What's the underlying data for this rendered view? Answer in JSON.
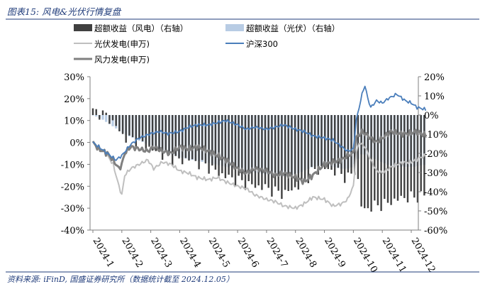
{
  "header": {
    "title": "图表15:  风电&光伏行情复盘"
  },
  "footer": {
    "source": "资料来源:  iFinD,  国盛证券研究所（数据统计截至 2024.12.05）"
  },
  "colors": {
    "title": "#1f3b7a",
    "excess_wind": "#404040",
    "excess_pv": "#b8cce4",
    "pv_index": "#bfbfbf",
    "csi300": "#4a7ebb",
    "wind_index": "#808080"
  },
  "chart_data": {
    "type": "combo",
    "x_ticks": [
      "2024-1",
      "2024-2",
      "2024-3",
      "2024-4",
      "2024-5",
      "2024-6",
      "2024-7",
      "2024-8",
      "2024-9",
      "2024-10",
      "2024-11",
      "2024-12"
    ],
    "left_axis": {
      "ticks": [
        "30%",
        "20%",
        "10%",
        "0%",
        "-10%",
        "-20%",
        "-30%",
        "-40%"
      ],
      "range": [
        -40,
        30
      ]
    },
    "right_axis": {
      "ticks": [
        "20%",
        "10%",
        "0%",
        "-10%",
        "-20%",
        "-30%",
        "-40%",
        "-50%",
        "-60%"
      ],
      "range": [
        -60,
        20
      ]
    },
    "legend": [
      {
        "key": "excess_wind",
        "label": "超额收益（风电）（右轴）",
        "kind": "bar"
      },
      {
        "key": "excess_pv",
        "label": "超额收益（光伏）（右轴）",
        "kind": "bar"
      },
      {
        "key": "pv_index",
        "label": "光伏发电(申万)",
        "kind": "line"
      },
      {
        "key": "csi300",
        "label": "沪深300",
        "kind": "line"
      },
      {
        "key": "wind_index",
        "label": "风力发电(申万)",
        "kind": "line"
      }
    ],
    "series": {
      "csi300": {
        "axis": "left",
        "points": [
          [
            0,
            0
          ],
          [
            0.2,
            -2
          ],
          [
            0.5,
            -5
          ],
          [
            0.8,
            -8
          ],
          [
            1.0,
            -6
          ],
          [
            1.3,
            -1
          ],
          [
            1.6,
            2
          ],
          [
            2.0,
            4
          ],
          [
            2.3,
            5
          ],
          [
            2.6,
            4
          ],
          [
            3.0,
            5
          ],
          [
            3.3,
            7
          ],
          [
            3.6,
            8
          ],
          [
            4.0,
            8
          ],
          [
            4.3,
            9
          ],
          [
            4.6,
            10
          ],
          [
            5.0,
            8
          ],
          [
            5.3,
            6
          ],
          [
            5.6,
            7
          ],
          [
            6.0,
            6
          ],
          [
            6.3,
            7
          ],
          [
            6.6,
            8
          ],
          [
            7.0,
            6
          ],
          [
            7.3,
            5
          ],
          [
            7.6,
            3
          ],
          [
            8.0,
            2
          ],
          [
            8.3,
            1
          ],
          [
            8.6,
            -2
          ],
          [
            8.8,
            -4
          ],
          [
            9.0,
            -3
          ],
          [
            9.1,
            10
          ],
          [
            9.3,
            22
          ],
          [
            9.4,
            26
          ],
          [
            9.5,
            20
          ],
          [
            9.6,
            16
          ],
          [
            9.8,
            19
          ],
          [
            10.0,
            18
          ],
          [
            10.2,
            20
          ],
          [
            10.5,
            22
          ],
          [
            10.8,
            19
          ],
          [
            11.0,
            18
          ],
          [
            11.2,
            16
          ],
          [
            11.5,
            15
          ]
        ]
      },
      "pv_index": {
        "axis": "left",
        "points": [
          [
            0,
            0
          ],
          [
            0.2,
            -2
          ],
          [
            0.5,
            -6
          ],
          [
            0.7,
            -10
          ],
          [
            0.9,
            -20
          ],
          [
            1.0,
            -24
          ],
          [
            1.1,
            -15
          ],
          [
            1.3,
            -12
          ],
          [
            1.6,
            -10
          ],
          [
            1.9,
            -8
          ],
          [
            2.1,
            -12
          ],
          [
            2.4,
            -9
          ],
          [
            2.7,
            -10
          ],
          [
            3.0,
            -13
          ],
          [
            3.3,
            -14
          ],
          [
            3.6,
            -16
          ],
          [
            4.0,
            -17
          ],
          [
            4.3,
            -16
          ],
          [
            4.6,
            -18
          ],
          [
            5.0,
            -20
          ],
          [
            5.3,
            -21
          ],
          [
            5.6,
            -24
          ],
          [
            6.0,
            -26
          ],
          [
            6.3,
            -27
          ],
          [
            6.6,
            -29
          ],
          [
            7.0,
            -30
          ],
          [
            7.3,
            -28
          ],
          [
            7.6,
            -25
          ],
          [
            8.0,
            -26
          ],
          [
            8.3,
            -29
          ],
          [
            8.6,
            -28
          ],
          [
            8.8,
            -26
          ],
          [
            9.0,
            -20
          ],
          [
            9.1,
            -5
          ],
          [
            9.2,
            0
          ],
          [
            9.4,
            -2
          ],
          [
            9.6,
            -8
          ],
          [
            9.8,
            -13
          ],
          [
            10.0,
            -14
          ],
          [
            10.2,
            -12
          ],
          [
            10.5,
            -10
          ],
          [
            10.8,
            -9
          ],
          [
            11.0,
            -9
          ],
          [
            11.3,
            -7
          ],
          [
            11.5,
            -6
          ]
        ]
      },
      "wind_index": {
        "axis": "left",
        "points": [
          [
            0,
            0
          ],
          [
            0.2,
            -3
          ],
          [
            0.5,
            -5
          ],
          [
            0.7,
            -8
          ],
          [
            0.9,
            -12
          ],
          [
            1.0,
            -10
          ],
          [
            1.1,
            -5
          ],
          [
            1.3,
            -2
          ],
          [
            1.6,
            -3
          ],
          [
            1.9,
            -4
          ],
          [
            2.1,
            -2
          ],
          [
            2.4,
            -4
          ],
          [
            2.7,
            -5
          ],
          [
            3.0,
            -2
          ],
          [
            3.3,
            -3
          ],
          [
            3.6,
            -2
          ],
          [
            4.0,
            -4
          ],
          [
            4.3,
            -6
          ],
          [
            4.6,
            -8
          ],
          [
            5.0,
            -12
          ],
          [
            5.3,
            -14
          ],
          [
            5.6,
            -12
          ],
          [
            6.0,
            -13
          ],
          [
            6.3,
            -15
          ],
          [
            6.6,
            -14
          ],
          [
            7.0,
            -16
          ],
          [
            7.3,
            -18
          ],
          [
            7.6,
            -15
          ],
          [
            8.0,
            -10
          ],
          [
            8.3,
            -9
          ],
          [
            8.6,
            -8
          ],
          [
            8.8,
            -6
          ],
          [
            9.0,
            -5
          ],
          [
            9.1,
            2
          ],
          [
            9.3,
            5
          ],
          [
            9.5,
            3
          ],
          [
            9.8,
            0
          ],
          [
            10.0,
            2
          ],
          [
            10.3,
            5
          ],
          [
            10.6,
            4
          ],
          [
            10.9,
            4
          ],
          [
            11.2,
            5
          ],
          [
            11.5,
            3
          ]
        ]
      },
      "excess_wind": {
        "axis": "right",
        "points": [
          [
            0,
            2
          ],
          [
            0.3,
            1
          ],
          [
            0.6,
            -2
          ],
          [
            0.9,
            -8
          ],
          [
            1.1,
            -12
          ],
          [
            1.4,
            -13
          ],
          [
            1.7,
            -15
          ],
          [
            2.0,
            -18
          ],
          [
            2.3,
            -20
          ],
          [
            2.6,
            -22
          ],
          [
            3.0,
            -24
          ],
          [
            3.3,
            -23
          ],
          [
            3.6,
            -25
          ],
          [
            4.0,
            -27
          ],
          [
            4.3,
            -30
          ],
          [
            4.6,
            -32
          ],
          [
            5.0,
            -34
          ],
          [
            5.3,
            -36
          ],
          [
            5.6,
            -37
          ],
          [
            6.0,
            -38
          ],
          [
            6.3,
            -40
          ],
          [
            6.6,
            -41
          ],
          [
            7.0,
            -38
          ],
          [
            7.3,
            -35
          ],
          [
            7.6,
            -29
          ],
          [
            8.0,
            -28
          ],
          [
            8.3,
            -29
          ],
          [
            8.6,
            -31
          ],
          [
            8.8,
            -33
          ],
          [
            9.0,
            -30
          ],
          [
            9.1,
            -28
          ],
          [
            9.3,
            -50
          ],
          [
            9.6,
            -48
          ],
          [
            9.9,
            -47
          ],
          [
            10.2,
            -46
          ],
          [
            10.5,
            -44
          ],
          [
            10.8,
            -43
          ],
          [
            11.1,
            -43
          ],
          [
            11.4,
            -42
          ]
        ]
      },
      "excess_pv": {
        "axis": "right",
        "points": [
          [
            0,
            0
          ],
          [
            0.3,
            -2
          ],
          [
            0.6,
            -5
          ],
          [
            0.9,
            -8
          ],
          [
            1.1,
            -10
          ],
          [
            1.4,
            -12
          ],
          [
            1.7,
            -14
          ],
          [
            2.0,
            -16
          ],
          [
            2.3,
            -18
          ],
          [
            2.6,
            -20
          ],
          [
            3.0,
            -22
          ],
          [
            3.3,
            -23
          ],
          [
            3.6,
            -24
          ],
          [
            4.0,
            -25
          ],
          [
            4.3,
            -26
          ],
          [
            4.6,
            -27
          ],
          [
            5.0,
            -28
          ],
          [
            5.3,
            -29
          ],
          [
            5.6,
            -30
          ],
          [
            6.0,
            -31
          ],
          [
            6.3,
            -32
          ],
          [
            6.6,
            -32
          ],
          [
            7.0,
            -31
          ],
          [
            7.3,
            -29
          ],
          [
            7.6,
            -27
          ],
          [
            8.0,
            -26
          ],
          [
            8.3,
            -27
          ],
          [
            8.6,
            -28
          ],
          [
            8.8,
            -28
          ],
          [
            9.0,
            -27
          ],
          [
            9.1,
            -24
          ],
          [
            9.3,
            -20
          ],
          [
            9.6,
            -22
          ],
          [
            9.9,
            -24
          ],
          [
            10.2,
            -26
          ],
          [
            10.5,
            -27
          ],
          [
            10.8,
            -27
          ],
          [
            11.1,
            -27
          ],
          [
            11.4,
            -26
          ]
        ]
      }
    }
  }
}
